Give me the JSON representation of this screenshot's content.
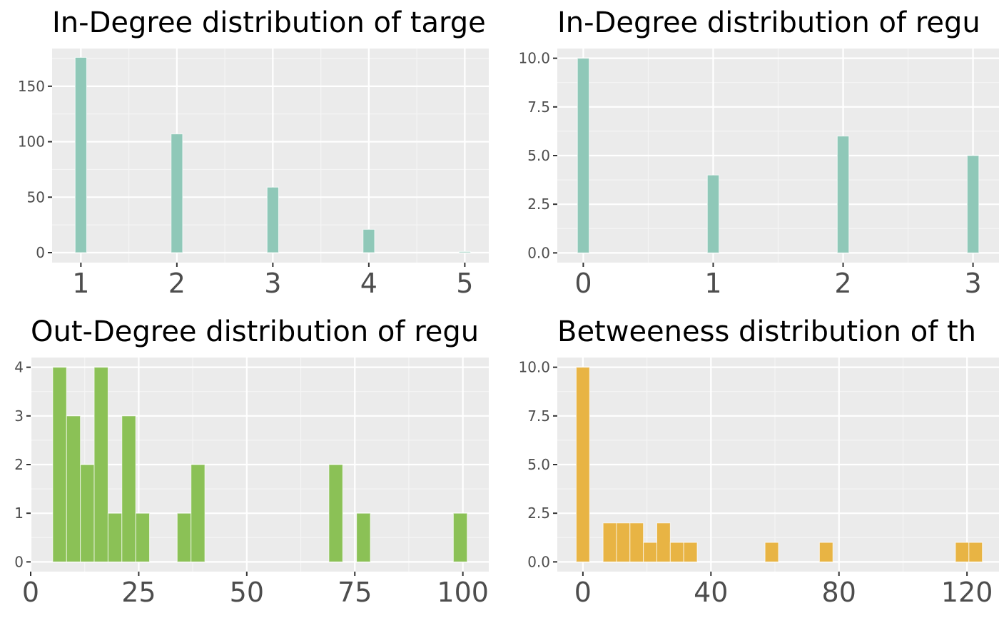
{
  "colors": {
    "panel_background": "#ebebeb",
    "grid_major": "#ffffff",
    "grid_minor": "#f5f5f5",
    "teal": "#8fc8b8",
    "green": "#8bc156",
    "orange": "#e8b444",
    "tick_text": "#4d4d4d"
  },
  "chart_data": [
    {
      "type": "bar",
      "title": "In-Degree distribution of targe",
      "xlabel": "",
      "ylabel": "",
      "color": "#8fc8b8",
      "xlim": [
        0.7,
        5.25
      ],
      "ylim": [
        -9,
        184
      ],
      "x_ticks": [
        1,
        2,
        3,
        4,
        5
      ],
      "x_tick_labels": [
        "1",
        "2",
        "3",
        "4",
        "5"
      ],
      "y_ticks": [
        0,
        50,
        100,
        150
      ],
      "y_tick_labels": [
        "0",
        "50",
        "100",
        "150"
      ],
      "bin_width": 0.12,
      "x": [
        1,
        2,
        3,
        4,
        5
      ],
      "values": [
        176,
        107,
        59,
        21,
        1
      ],
      "grid": true
    },
    {
      "type": "bar",
      "title": "In-Degree distribution of regu",
      "xlabel": "",
      "ylabel": "",
      "color": "#8fc8b8",
      "xlim": [
        -0.2,
        3.2
      ],
      "ylim": [
        -0.5,
        10.5
      ],
      "x_ticks": [
        0,
        1,
        2,
        3
      ],
      "x_tick_labels": [
        "0",
        "1",
        "2",
        "3"
      ],
      "y_ticks": [
        0,
        2.5,
        5,
        7.5,
        10
      ],
      "y_tick_labels": [
        "0.0",
        "2.5",
        "5.0",
        "7.5",
        "10.0"
      ],
      "bin_width": 0.09,
      "x": [
        0,
        1,
        2,
        3
      ],
      "values": [
        10,
        4,
        6,
        5
      ],
      "grid": true
    },
    {
      "type": "bar",
      "title": "Out-Degree distribution of regu",
      "xlabel": "",
      "ylabel": "",
      "color": "#8bc156",
      "xlim": [
        0,
        106
      ],
      "ylim": [
        -0.2,
        4.2
      ],
      "x_ticks": [
        0,
        25,
        50,
        75,
        100
      ],
      "x_tick_labels": [
        "0",
        "25",
        "50",
        "75",
        "100"
      ],
      "y_ticks": [
        0,
        1,
        2,
        3,
        4
      ],
      "y_tick_labels": [
        "0",
        "1",
        "2",
        "3",
        "4"
      ],
      "bin_width": 3.2,
      "x": [
        6.7,
        9.9,
        13.1,
        16.3,
        19.5,
        22.7,
        25.9,
        35.5,
        38.7,
        70.6,
        77.0,
        99.4
      ],
      "values": [
        4,
        3,
        2,
        4,
        1,
        3,
        1,
        1,
        2,
        2,
        1,
        1
      ],
      "grid": true
    },
    {
      "type": "bar",
      "title": "Betweeness distribution of th",
      "xlabel": "",
      "ylabel": "",
      "color": "#e8b444",
      "xlim": [
        -8,
        130
      ],
      "ylim": [
        -0.5,
        10.5
      ],
      "x_ticks": [
        0,
        40,
        80,
        120
      ],
      "x_tick_labels": [
        "0",
        "40",
        "80",
        "120"
      ],
      "y_ticks": [
        0,
        2.5,
        5,
        7.5,
        10
      ],
      "y_tick_labels": [
        "0.0",
        "2.5",
        "5.0",
        "7.5",
        "10.0"
      ],
      "bin_width": 4.2,
      "x": [
        0,
        8.4,
        12.6,
        16.8,
        21.0,
        25.2,
        29.4,
        33.6,
        59.0,
        76.0,
        118.5,
        122.7
      ],
      "values": [
        10,
        2,
        2,
        2,
        1,
        2,
        1,
        1,
        1,
        1,
        1,
        1
      ],
      "grid": true
    }
  ]
}
